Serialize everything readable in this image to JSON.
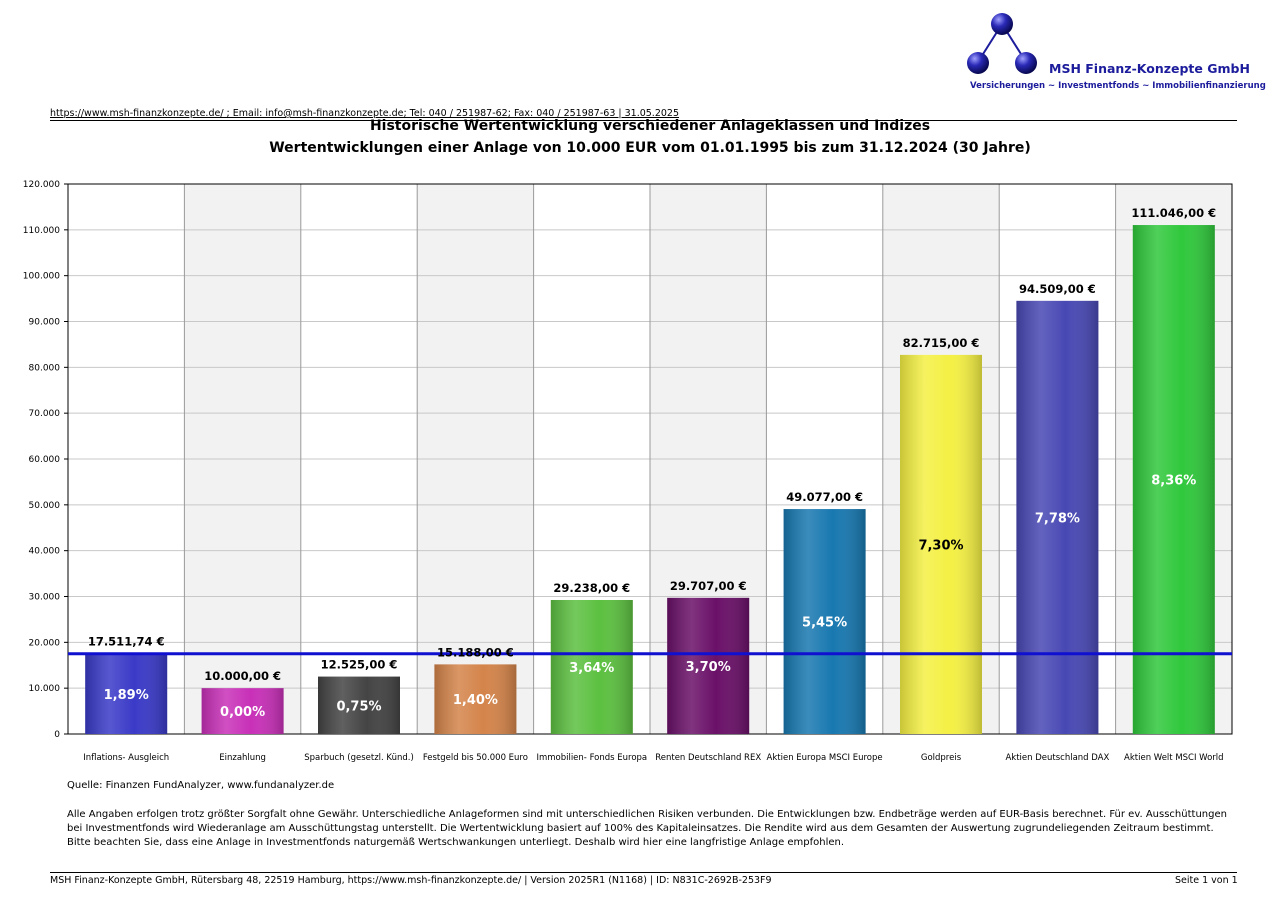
{
  "brand": {
    "name": "MSH Finanz-Konzepte GmbH",
    "tagline": "Versicherungen ~ Investmentfonds ~ Immobilienfinanzierung"
  },
  "header": {
    "contact_line": "https://www.msh-finanzkonzepte.de/ ; Email: info@msh-finanzkonzepte.de; Tel: 040 / 251987-62; Fax: 040 / 251987-63 | 31.05.2025"
  },
  "chart_data": {
    "type": "bar",
    "title": "Historische Wertentwicklung verschiedener Anlageklassen und Indizes",
    "subtitle": "Wertentwicklungen einer Anlage von 10.000 EUR vom 01.01.1995 bis zum 31.12.2024 (30 Jahre)",
    "ylim": [
      0,
      120000
    ],
    "yticks": [
      {
        "value": 0,
        "label": "0"
      },
      {
        "value": 10000,
        "label": "10.000"
      },
      {
        "value": 20000,
        "label": "20.000"
      },
      {
        "value": 30000,
        "label": "30.000"
      },
      {
        "value": 40000,
        "label": "40.000"
      },
      {
        "value": 50000,
        "label": "50.000"
      },
      {
        "value": 60000,
        "label": "60.000"
      },
      {
        "value": 70000,
        "label": "70.000"
      },
      {
        "value": 80000,
        "label": "80.000"
      },
      {
        "value": 90000,
        "label": "90.000"
      },
      {
        "value": 100000,
        "label": "100.000"
      },
      {
        "value": 110000,
        "label": "110.000"
      },
      {
        "value": 120000,
        "label": "120.000"
      }
    ],
    "grid": true,
    "reference_line": {
      "value": 17511.74,
      "color": "#1010d0"
    },
    "bars": [
      {
        "category": "Inflations- Ausgleich",
        "value": 17511.74,
        "value_label": "17.511,74 €",
        "return_label": "1,89%",
        "color": "#3a3ac8"
      },
      {
        "category": "Einzahlung",
        "value": 10000,
        "value_label": "10.000,00 €",
        "return_label": "0,00%",
        "color": "#c830b8"
      },
      {
        "category": "Sparbuch (gesetzl. Künd.)",
        "value": 12525,
        "value_label": "12.525,00 €",
        "return_label": "0,75%",
        "color": "#444444"
      },
      {
        "category": "Festgeld bis 50.000 Euro",
        "value": 15188,
        "value_label": "15.188,00 €",
        "return_label": "1,40%",
        "color": "#d4844a"
      },
      {
        "category": "Immobilien- Fonds Europa",
        "value": 29238,
        "value_label": "29.238,00 €",
        "return_label": "3,64%",
        "color": "#5cc040"
      },
      {
        "category": "Renten Deutschland REX",
        "value": 29707,
        "value_label": "29.707,00 €",
        "return_label": "3,70%",
        "color": "#6a1068"
      },
      {
        "category": "Aktien Europa MSCI Europe",
        "value": 49077,
        "value_label": "49.077,00 €",
        "return_label": "5,45%",
        "color": "#1878b0"
      },
      {
        "category": "Goldpreis",
        "value": 82715,
        "value_label": "82.715,00 €",
        "return_label": "7,30%",
        "color": "#f4f044"
      },
      {
        "category": "Aktien Deutschland DAX",
        "value": 94509,
        "value_label": "94.509,00 €",
        "return_label": "7,78%",
        "color": "#4848b4"
      },
      {
        "category": "Aktien Welt MSCI World",
        "value": 111046,
        "value_label": "111.046,00 €",
        "return_label": "8,36%",
        "color": "#30c83c"
      }
    ]
  },
  "notes": {
    "source": "Quelle: Finanzen FundAnalyzer, www.fundanalyzer.de",
    "disclaimer": "Alle Angaben erfolgen trotz größter Sorgfalt ohne Gewähr. Unterschiedliche Anlageformen sind mit unterschiedlichen Risiken verbunden. Die Entwicklungen bzw. Endbeträge werden auf EUR-Basis berechnet. Für ev. Ausschüttungen bei Investmentfonds wird Wiederanlage am Ausschüttungstag unterstellt. Die Wertentwicklung basiert auf 100% des Kapitaleinsatzes. Die Rendite wird aus dem Gesamten der Auswertung zugrundeliegenden Zeitraum bestimmt. Bitte beachten Sie, dass eine Anlage in Investmentfonds naturgemäß Wertschwankungen unterliegt. Deshalb wird hier eine langfristige Anlage empfohlen."
  },
  "footer": {
    "left": "MSH Finanz-Konzepte GmbH, Rütersbarg 48, 22519 Hamburg, https://www.msh-finanzkonzepte.de/  | Version 2025R1 (N1168) | ID: N831C-2692B-253F9",
    "right": "Seite 1 von 1"
  }
}
